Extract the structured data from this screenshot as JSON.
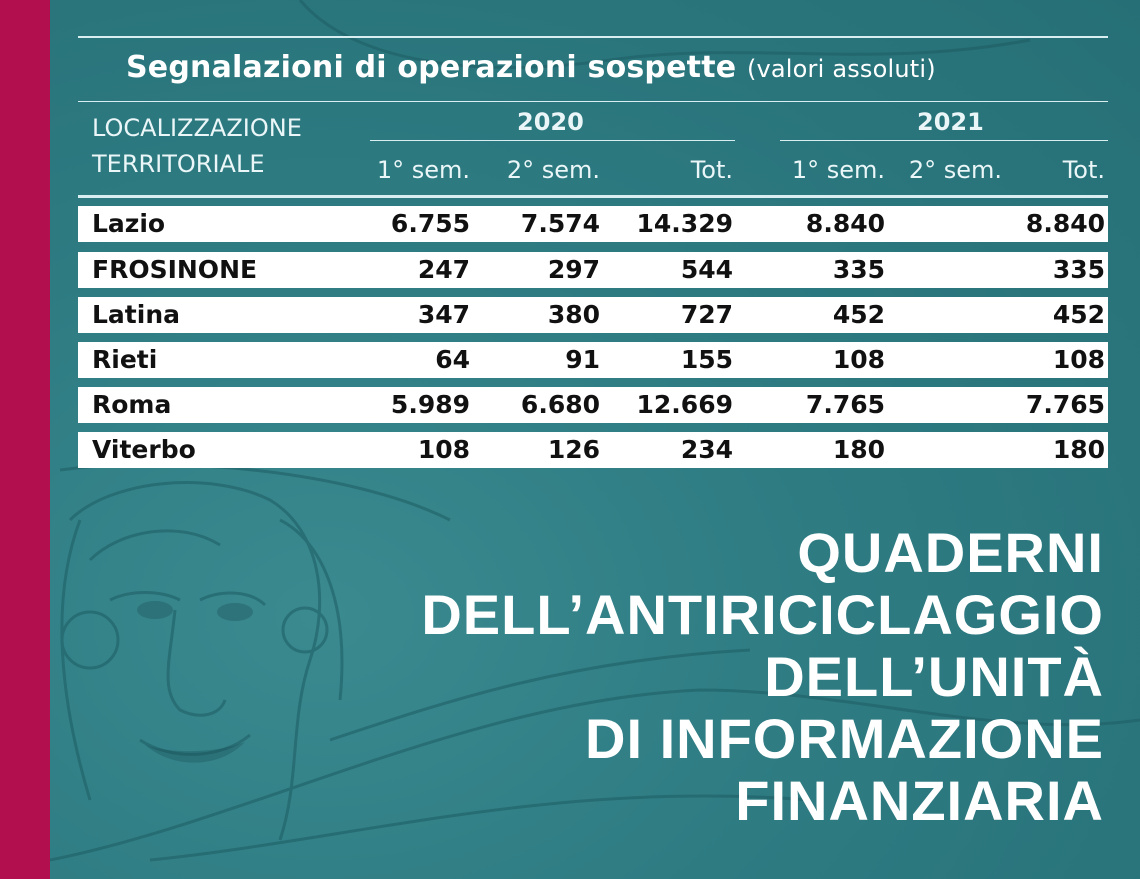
{
  "colors": {
    "strip": "#b10f4e",
    "background": "#2f7f86",
    "row_bg": "#ffffff"
  },
  "decoration": {
    "portrait": "sketch-portrait-icon"
  },
  "table": {
    "title": "Segnalazioni di operazioni sospette",
    "subtitle": "(valori assoluti)",
    "header": {
      "territory_line1": "LOCALIZZAZIONE",
      "territory_line2": "TERRITORIALE",
      "year1": "2020",
      "year2": "2021",
      "col_sem1": "1° sem.",
      "col_sem2": "2° sem.",
      "col_tot": "Tot."
    },
    "rows": [
      {
        "name": "Lazio",
        "v": [
          "6.755",
          "7.574",
          "14.329",
          "8.840",
          "",
          "8.840"
        ]
      },
      {
        "name": "FROSINONE",
        "v": [
          "247",
          "297",
          "544",
          "335",
          "",
          "335"
        ]
      },
      {
        "name": "Latina",
        "v": [
          "347",
          "380",
          "727",
          "452",
          "",
          "452"
        ]
      },
      {
        "name": "Rieti",
        "v": [
          "64",
          "91",
          "155",
          "108",
          "",
          "108"
        ]
      },
      {
        "name": "Roma",
        "v": [
          "5.989",
          "6.680",
          "12.669",
          "7.765",
          "",
          "7.765"
        ]
      },
      {
        "name": "Viterbo",
        "v": [
          "108",
          "126",
          "234",
          "180",
          "",
          "180"
        ]
      }
    ]
  },
  "cover_title": [
    "QUADERNI",
    "DELL’ANTIRICICLAGGIO",
    "DELL’UNITÀ",
    "DI INFORMAZIONE",
    "FINANZIARIA"
  ]
}
